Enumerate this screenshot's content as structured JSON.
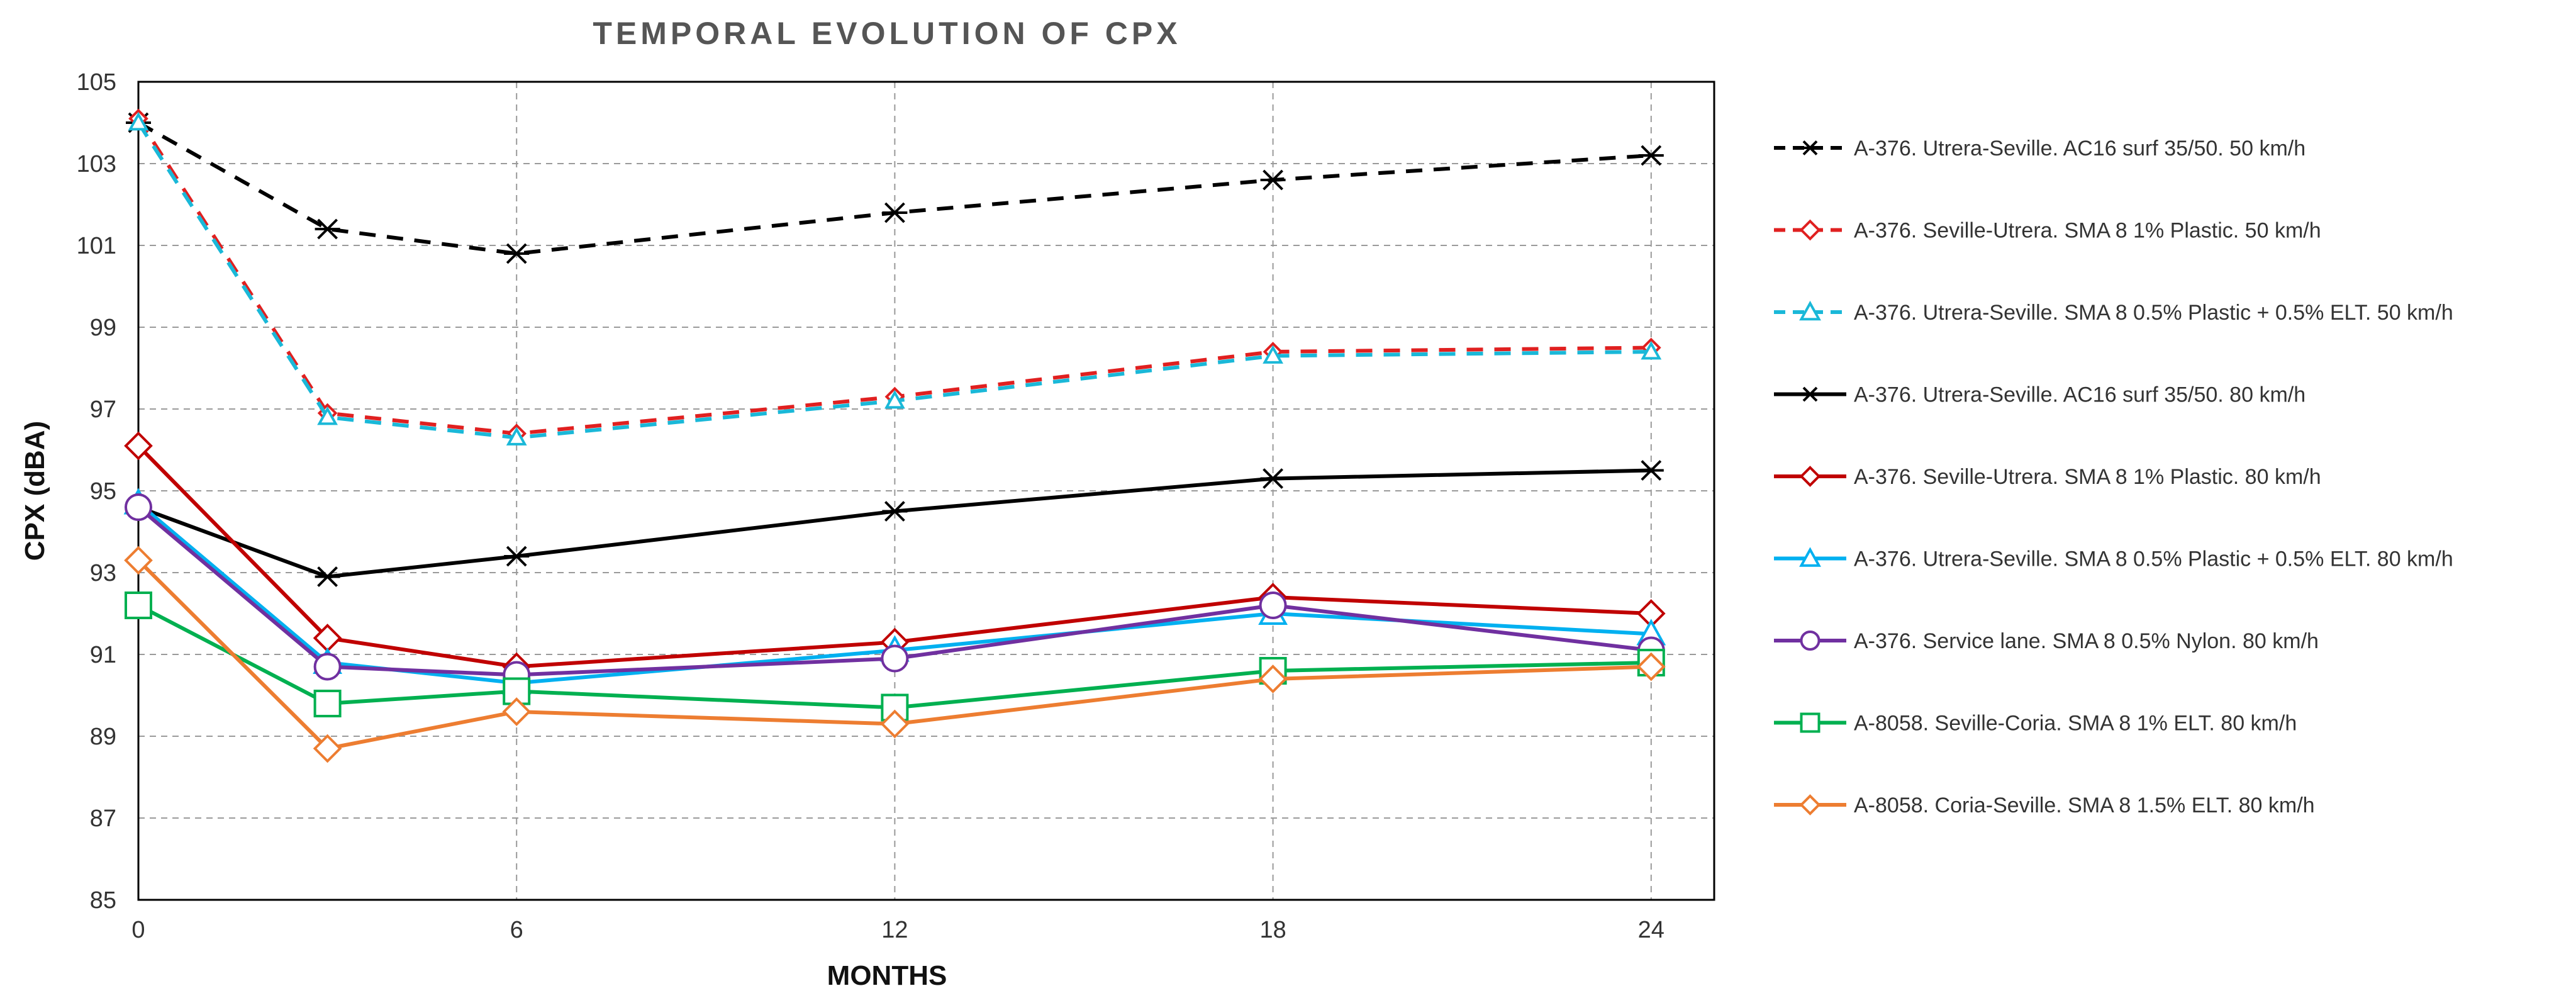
{
  "chart_data": {
    "type": "line",
    "title": "TEMPORAL EVOLUTION OF CPX",
    "xlabel": "MONTHS",
    "ylabel": "CPX (dBA)",
    "xlim": [
      0,
      25
    ],
    "ylim": [
      85,
      105
    ],
    "xticks": [
      0,
      6,
      12,
      18,
      24
    ],
    "yticks": [
      85,
      87,
      89,
      91,
      93,
      95,
      97,
      99,
      101,
      103,
      105
    ],
    "grid": true,
    "legend_position": "right",
    "x": [
      0,
      3,
      6,
      12,
      18,
      24
    ],
    "series": [
      {
        "name": "A-376. Utrera-Seville. AC16 surf 35/50. 50 km/h",
        "color": "#000000",
        "dash": "dashed",
        "marker": "star",
        "values": [
          104.0,
          101.4,
          100.8,
          101.8,
          102.6,
          103.2
        ]
      },
      {
        "name": "A-376. Seville-Utrera. SMA 8 1% Plastic. 50 km/h",
        "color": "#e02020",
        "dash": "dashed",
        "marker": "diamond",
        "values": [
          104.1,
          96.9,
          96.4,
          97.3,
          98.4,
          98.5
        ]
      },
      {
        "name": "A-376. Utrera-Seville. SMA 8 0.5% Plastic + 0.5% ELT. 50 km/h",
        "color": "#1ab8d8",
        "dash": "dashed",
        "marker": "triangle",
        "values": [
          104.0,
          96.8,
          96.3,
          97.2,
          98.3,
          98.4
        ]
      },
      {
        "name": "A-376. Utrera-Seville. AC16 surf 35/50. 80 km/h",
        "color": "#000000",
        "dash": "solid",
        "marker": "star",
        "values": [
          94.6,
          92.9,
          93.4,
          94.5,
          95.3,
          95.5
        ]
      },
      {
        "name": "A-376. Seville-Utrera. SMA 8 1% Plastic. 80 km/h",
        "color": "#c00000",
        "dash": "solid",
        "marker": "diamond",
        "values": [
          96.1,
          91.4,
          90.7,
          91.3,
          92.4,
          92.0
        ]
      },
      {
        "name": "A-376. Utrera-Seville. SMA 8 0.5% Plastic + 0.5% ELT. 80 km/h",
        "color": "#00b0f0",
        "dash": "solid",
        "marker": "triangle",
        "values": [
          94.7,
          90.8,
          90.3,
          91.1,
          92.0,
          91.5
        ]
      },
      {
        "name": "A-376. Service lane. SMA 8 0.5% Nylon. 80 km/h",
        "color": "#7030a0",
        "dash": "solid",
        "marker": "circle",
        "values": [
          94.6,
          90.7,
          90.5,
          90.9,
          92.2,
          91.1
        ]
      },
      {
        "name": "A-8058. Seville-Coria. SMA 8 1% ELT. 80 km/h",
        "color": "#00b050",
        "dash": "solid",
        "marker": "square",
        "values": [
          92.2,
          89.8,
          90.1,
          89.7,
          90.6,
          90.8
        ]
      },
      {
        "name": "A-8058. Coria-Seville. SMA 8 1.5% ELT. 80 km/h",
        "color": "#ed7d31",
        "dash": "solid",
        "marker": "diamond",
        "values": [
          93.3,
          88.7,
          89.6,
          89.3,
          90.4,
          90.7
        ]
      }
    ]
  }
}
